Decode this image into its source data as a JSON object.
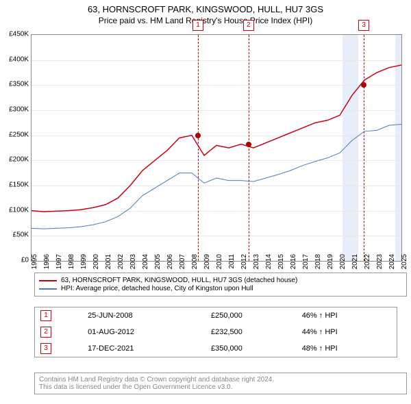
{
  "title1": "63, HORNSCROFT PARK, KINGSWOOD, HULL, HU7 3GS",
  "title2": "Price paid vs. HM Land Registry's House Price Index (HPI)",
  "chart": {
    "type": "line",
    "x_years": [
      1995,
      1996,
      1997,
      1998,
      1999,
      2000,
      2001,
      2002,
      2003,
      2004,
      2005,
      2006,
      2007,
      2008,
      2009,
      2010,
      2011,
      2012,
      2013,
      2014,
      2015,
      2016,
      2017,
      2018,
      2019,
      2020,
      2021,
      2022,
      2023,
      2024,
      2025
    ],
    "ylim": [
      0,
      450000
    ],
    "ytick_step": 50000,
    "ytick_labels": [
      "£0",
      "£50K",
      "£100K",
      "£150K",
      "£200K",
      "£250K",
      "£300K",
      "£350K",
      "£400K",
      "£450K"
    ],
    "background_color": "#ffffff",
    "grid_color": "#e8e8e8",
    "series": [
      {
        "name": "property",
        "label": "63, HORNSCROFT PARK, KINGSWOOD, HULL, HU7 3GS (detached house)",
        "color": "#cc0010",
        "width": 1.5,
        "values_by_year": {
          "1995": 100000,
          "1996": 98000,
          "1997": 99000,
          "1998": 100000,
          "1999": 102000,
          "2000": 106000,
          "2001": 112000,
          "2002": 125000,
          "2003": 150000,
          "2004": 180000,
          "2005": 200000,
          "2006": 220000,
          "2007": 245000,
          "2008": 250000,
          "2009": 210000,
          "2010": 230000,
          "2011": 225000,
          "2012": 232500,
          "2013": 225000,
          "2014": 235000,
          "2015": 245000,
          "2016": 255000,
          "2017": 265000,
          "2018": 275000,
          "2019": 280000,
          "2020": 290000,
          "2021": 330000,
          "2022": 360000,
          "2023": 375000,
          "2024": 385000,
          "2025": 390000
        }
      },
      {
        "name": "hpi",
        "label": "HPI: Average price, detached house, City of Kingston upon Hull",
        "color": "#4a78c8",
        "width": 1,
        "values_by_year": {
          "1995": 65000,
          "1996": 64000,
          "1997": 65000,
          "1998": 66000,
          "1999": 68000,
          "2000": 72000,
          "2001": 78000,
          "2002": 88000,
          "2003": 105000,
          "2004": 130000,
          "2005": 145000,
          "2006": 160000,
          "2007": 175000,
          "2008": 175000,
          "2009": 155000,
          "2010": 165000,
          "2011": 160000,
          "2012": 160000,
          "2013": 158000,
          "2014": 165000,
          "2015": 172000,
          "2016": 180000,
          "2017": 190000,
          "2018": 198000,
          "2019": 205000,
          "2020": 215000,
          "2021": 240000,
          "2022": 258000,
          "2023": 260000,
          "2024": 270000,
          "2025": 272000
        }
      }
    ],
    "markers": [
      {
        "n": "1",
        "year": 2008.5,
        "price": 250000
      },
      {
        "n": "2",
        "year": 2012.6,
        "price": 232500
      },
      {
        "n": "3",
        "year": 2021.95,
        "price": 350000
      }
    ],
    "blue_bands": [
      {
        "start": 2020.2,
        "end": 2021.5
      },
      {
        "start": 2024.5,
        "end": 2025.0
      }
    ]
  },
  "legend": {
    "s0": "63, HORNSCROFT PARK, KINGSWOOD, HULL, HU7 3GS (detached house)",
    "s1": "HPI: Average price, detached house, City of Kingston upon Hull"
  },
  "sales": [
    {
      "n": "1",
      "date": "25-JUN-2008",
      "price": "£250,000",
      "pct": "46% ↑ HPI"
    },
    {
      "n": "2",
      "date": "01-AUG-2012",
      "price": "£232,500",
      "pct": "44% ↑ HPI"
    },
    {
      "n": "3",
      "date": "17-DEC-2021",
      "price": "£350,000",
      "pct": "48% ↑ HPI"
    }
  ],
  "footnote1": "Contains HM Land Registry data © Crown copyright and database right 2024.",
  "footnote2": "This data is licensed under the Open Government Licence v3.0."
}
